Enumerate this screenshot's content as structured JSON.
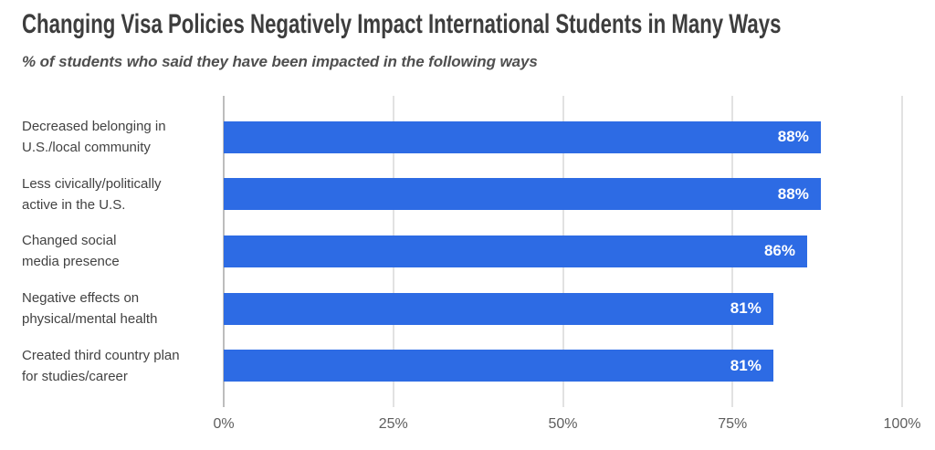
{
  "chart_data": {
    "type": "bar",
    "orientation": "horizontal",
    "title": "Changing Visa Policies Negatively Impact International Students in Many Ways",
    "subtitle": "% of students who said they have been impacted in the following ways",
    "categories": [
      "Decreased belonging in\nU.S./local community",
      "Less civically/politically\nactive in the U.S.",
      "Changed social\nmedia presence",
      "Negative effects on\nphysical/mental health",
      "Created third country plan\nfor studies/career"
    ],
    "values": [
      88,
      88,
      86,
      81,
      81
    ],
    "value_labels": [
      "88%",
      "88%",
      "86%",
      "81%",
      "81%"
    ],
    "xlabel": "",
    "ylabel": "",
    "xlim": [
      0,
      100
    ],
    "x_tick_values": [
      0,
      25,
      50,
      75,
      100
    ],
    "x_tick_labels": [
      "0%",
      "25%",
      "50%",
      "75%",
      "100%"
    ],
    "grid": true,
    "legend": false,
    "colors": {
      "bar": "#2d6be4",
      "value_label": "#ffffff",
      "title": "#3d3d3d",
      "subtitle": "#4f4f4f",
      "category_label": "#424242",
      "tick_label": "#5e5e5e",
      "gridline": "#e2e2e2",
      "axis_line": "#bdbdbd",
      "background": "#ffffff"
    }
  }
}
